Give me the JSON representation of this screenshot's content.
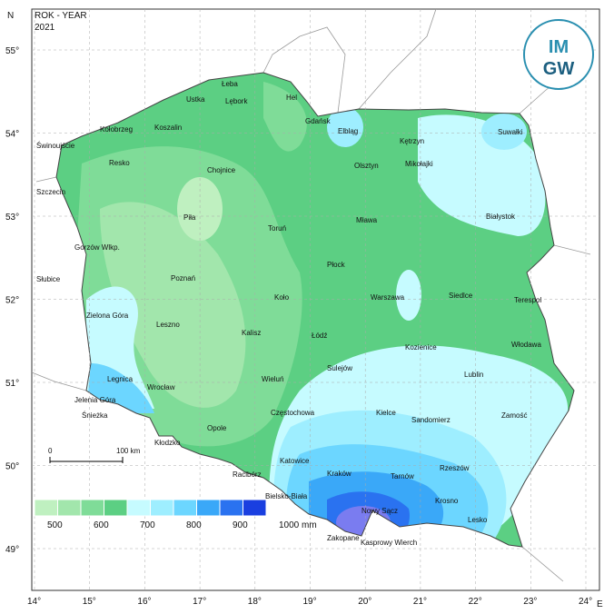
{
  "header": {
    "title": "ROK - YEAR",
    "year": "2021"
  },
  "logo": {
    "line1": "IM",
    "line2": "GW"
  },
  "compass": {
    "north": "N",
    "east": "E"
  },
  "axes": {
    "latitude": [
      "55°",
      "54°",
      "53°",
      "52°",
      "51°",
      "50°",
      "49°"
    ],
    "longitude": [
      "14°",
      "15°",
      "16°",
      "17°",
      "18°",
      "19°",
      "20°",
      "21°",
      "22°",
      "23°",
      "24°"
    ]
  },
  "legend": {
    "labels": [
      "500",
      "600",
      "700",
      "800",
      "900",
      "1000 mm"
    ]
  },
  "scale": {
    "start": "0",
    "end": "100 km"
  },
  "cities": [
    "Łeba",
    "Ustka",
    "Lębork",
    "Hel",
    "Kołobrzeg",
    "Koszalin",
    "Świnoujście",
    "Gdańsk",
    "Elbląg",
    "Kętrzyn",
    "Suwałki",
    "Resko",
    "Chojnice",
    "Olsztyn",
    "Mikołajki",
    "Szczecin",
    "Piła",
    "Toruń",
    "Mława",
    "Białystok",
    "Gorzów Wlkp.",
    "Płock",
    "Słubice",
    "Poznań",
    "Koło",
    "Warszawa",
    "Siedlce",
    "Terespol",
    "Zielona Góra",
    "Leszno",
    "Kalisz",
    "Łódź",
    "Kozienice",
    "Włodawa",
    "Sulejów",
    "Legnica",
    "Wieluń",
    "Lublin",
    "Wrocław",
    "Jelenia Góra",
    "Śnieżka",
    "Częstochowa",
    "Kielce",
    "Sandomierz",
    "Zamość",
    "Opole",
    "Kłodzko",
    "Katowice",
    "Kraków",
    "Tarnów",
    "Rzeszów",
    "Racibórz",
    "Bielsko-Biała",
    "Krosno",
    "Nowy Sącz",
    "Lesko",
    "Zakopane",
    "Kasprowy Wierch"
  ]
}
